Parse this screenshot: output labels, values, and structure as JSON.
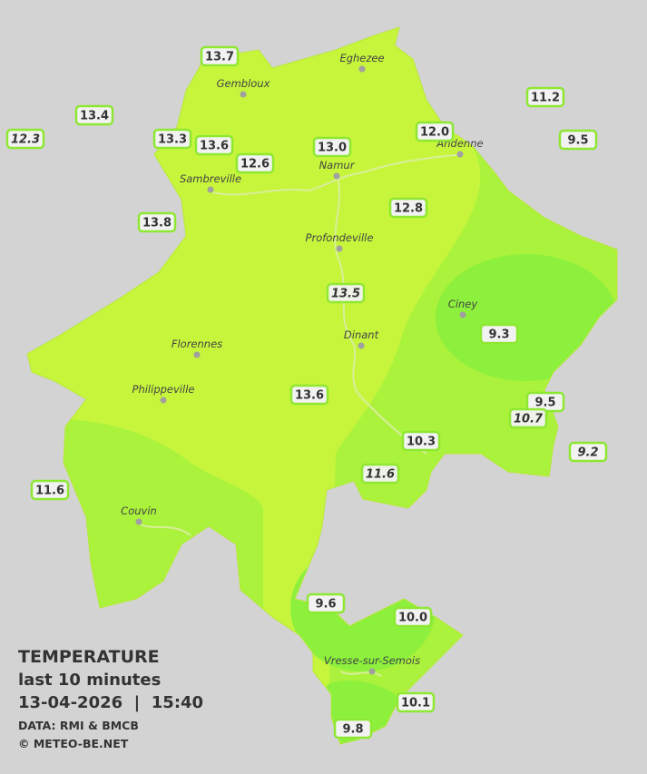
{
  "legend": {
    "title": "TEMPERATURE",
    "subtitle": "last 10 minutes",
    "datetime": "13-04-2026  |  15:40",
    "source": "DATA: RMI & BMCB",
    "credit": "© METEO-BE.NET"
  },
  "cities": [
    "Eghezee",
    "Gembloux",
    "Andenne",
    "Namur",
    "Sambreville",
    "Profondeville",
    "Ciney",
    "Dinant",
    "Florennes",
    "Philippeville",
    "Couvin",
    "Vresse-sur-Semois"
  ],
  "readings": [
    "13.7",
    "13.4",
    "12.3",
    "13.3",
    "13.6",
    "12.6",
    "13.0",
    "12.0",
    "11.2",
    "9.5",
    "13.8",
    "12.8",
    "13.5",
    "9.3",
    "13.6",
    "9.5",
    "10.7",
    "9.2",
    "10.3",
    "11.6",
    "11.6",
    "9.6",
    "10.0",
    "10.1",
    "9.8"
  ]
}
